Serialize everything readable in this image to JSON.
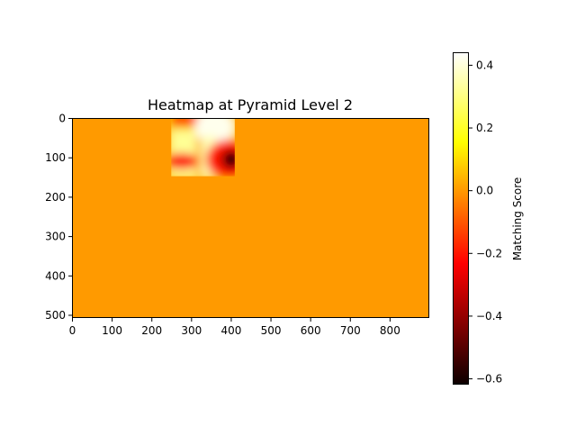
{
  "chart_data": {
    "type": "heatmap",
    "title": "Heatmap at Pyramid Level 2",
    "colormap": "hot",
    "image_extent": {
      "width": 900,
      "height": 508
    },
    "xlim": [
      0,
      900
    ],
    "ylim": [
      508,
      0
    ],
    "x_ticks": [
      0,
      100,
      200,
      300,
      400,
      500,
      600,
      700,
      800
    ],
    "y_ticks": [
      0,
      100,
      200,
      300,
      400,
      500
    ],
    "background_value": 0.0,
    "active_region": {
      "x": [
        250,
        410
      ],
      "y": [
        0,
        148
      ]
    },
    "colorbar": {
      "label": "Matching Score",
      "range": [
        -0.62,
        0.44
      ],
      "ticks": [
        -0.6,
        -0.4,
        -0.2,
        0.0,
        0.2,
        0.4
      ],
      "tick_labels": [
        "−0.6",
        "−0.4",
        "−0.2",
        "0.0",
        "0.2",
        "0.4"
      ]
    }
  }
}
